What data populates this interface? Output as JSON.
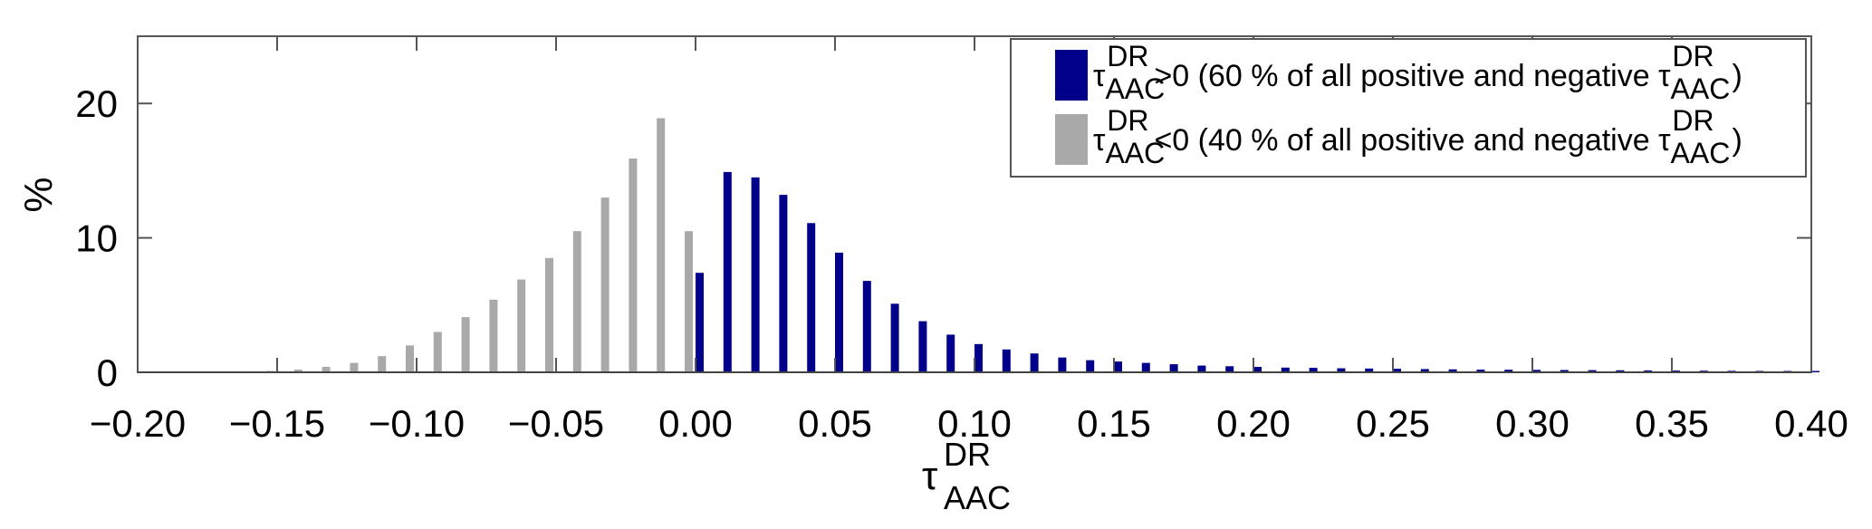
{
  "chart_data": {
    "type": "bar",
    "xlim": [
      -0.2,
      0.4
    ],
    "ylim": [
      0,
      25
    ],
    "xticks": [
      "−0.20",
      "−0.15",
      "−0.10",
      "−0.05",
      "0.00",
      "0.05",
      "0.10",
      "0.15",
      "0.20",
      "0.25",
      "0.30",
      "0.35",
      "0.40"
    ],
    "xtick_values": [
      -0.2,
      -0.15,
      -0.1,
      -0.05,
      0.0,
      0.05,
      0.1,
      0.15,
      0.2,
      0.25,
      0.3,
      0.35,
      0.4
    ],
    "yticks": [
      "0",
      "10",
      "20"
    ],
    "ytick_values": [
      0,
      10,
      20
    ],
    "ylabel": "%",
    "xlabel": {
      "base": "τ",
      "sup": "DR",
      "sub": "AAC"
    },
    "grid": false,
    "legend_position": "top-right",
    "series": [
      {
        "name": "positive",
        "color": "#00008b",
        "legend": {
          "base": "τ",
          "sup": "DR",
          "sub": "AAC",
          "text": ">0 (60 % of all positive and negative "
        },
        "x": [
          0.0,
          0.01,
          0.02,
          0.03,
          0.04,
          0.05,
          0.06,
          0.07,
          0.08,
          0.09,
          0.1,
          0.11,
          0.12,
          0.13,
          0.14,
          0.15,
          0.16,
          0.17,
          0.18,
          0.19,
          0.2,
          0.21,
          0.22,
          0.23,
          0.24,
          0.25,
          0.26,
          0.27,
          0.28,
          0.29,
          0.3,
          0.31,
          0.32,
          0.33,
          0.34,
          0.35,
          0.36,
          0.37,
          0.38,
          0.39,
          0.4
        ],
        "values": [
          7.4,
          14.9,
          14.5,
          13.2,
          11.1,
          8.9,
          6.8,
          5.1,
          3.8,
          2.8,
          2.1,
          1.7,
          1.4,
          1.1,
          0.9,
          0.8,
          0.7,
          0.6,
          0.5,
          0.45,
          0.4,
          0.35,
          0.33,
          0.3,
          0.28,
          0.26,
          0.24,
          0.22,
          0.2,
          0.19,
          0.18,
          0.17,
          0.16,
          0.15,
          0.14,
          0.13,
          0.12,
          0.11,
          0.1,
          0.1,
          0.1
        ]
      },
      {
        "name": "negative",
        "color": "#a9a9a9",
        "legend": {
          "base": "τ",
          "sup": "DR",
          "sub": "AAC",
          "text": "<0 (40 % of all positive and negative "
        },
        "x": [
          -0.19,
          -0.18,
          -0.17,
          -0.16,
          -0.15,
          -0.14,
          -0.13,
          -0.12,
          -0.11,
          -0.1,
          -0.09,
          -0.08,
          -0.07,
          -0.06,
          -0.05,
          -0.04,
          -0.03,
          -0.02,
          -0.01,
          0.0
        ],
        "values": [
          0.05,
          0.05,
          0.05,
          0.07,
          0.1,
          0.2,
          0.4,
          0.7,
          1.2,
          2.0,
          3.0,
          4.1,
          5.4,
          6.9,
          8.5,
          10.5,
          13.0,
          15.9,
          18.9,
          10.5
        ]
      }
    ]
  }
}
